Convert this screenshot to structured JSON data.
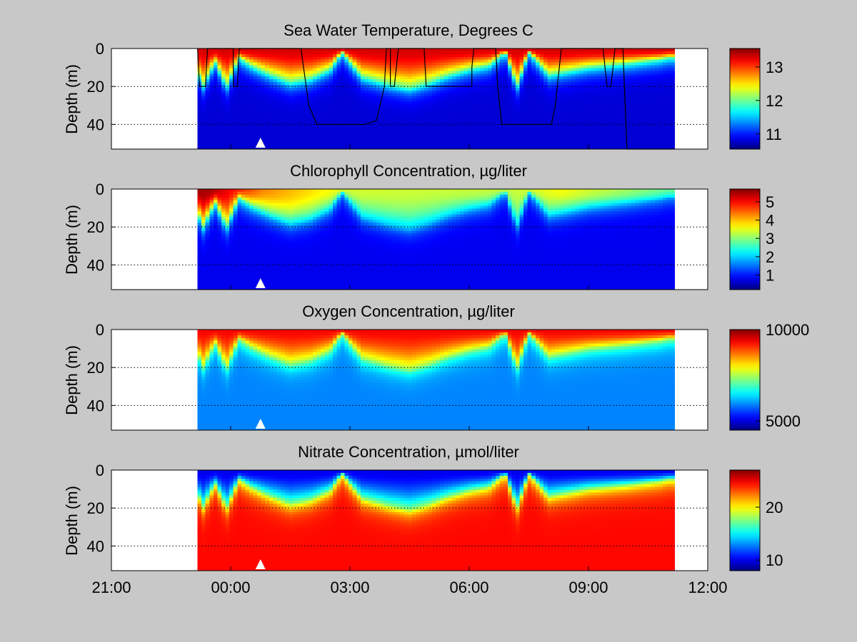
{
  "chart_data": [
    {
      "type": "heatmap",
      "title": "Sea Water Temperature, Degrees C",
      "ylabel": "Depth (m)",
      "x_ticks": [
        "21:00",
        "00:00",
        "03:00",
        "06:00",
        "09:00",
        "12:00"
      ],
      "y_ticks": [
        "0",
        "20",
        "40"
      ],
      "xlim": [
        "21:00",
        "12:00"
      ],
      "ylim": [
        0,
        53
      ],
      "y_reversed": true,
      "data_x_range": [
        "23:10",
        "11:10"
      ],
      "colorbar": {
        "ticks": [
          "11",
          "12",
          "13"
        ],
        "values": [
          11,
          12,
          13
        ],
        "range": [
          10.55,
          13.55
        ]
      },
      "surface_value": 13.3,
      "deep_value": 10.8,
      "mixed_layer_depth_m": [
        [
          0.0,
          1
        ],
        [
          0.3,
          20
        ],
        [
          0.6,
          7
        ],
        [
          0.9,
          20
        ],
        [
          1.2,
          5
        ],
        [
          1.5,
          9
        ],
        [
          2.0,
          14
        ],
        [
          2.5,
          18
        ],
        [
          3.0,
          16
        ],
        [
          3.5,
          11
        ],
        [
          3.8,
          2
        ],
        [
          4.3,
          15
        ],
        [
          5.0,
          19
        ],
        [
          5.5,
          21
        ],
        [
          6.0,
          18
        ],
        [
          6.5,
          14
        ],
        [
          7.0,
          11
        ],
        [
          7.5,
          9
        ],
        [
          7.9,
          2
        ],
        [
          8.2,
          20
        ],
        [
          8.5,
          2
        ],
        [
          9.0,
          14
        ],
        [
          9.5,
          12
        ],
        [
          10.0,
          10
        ],
        [
          10.5,
          9
        ],
        [
          11.0,
          8
        ],
        [
          11.8,
          6
        ],
        [
          12.0,
          5
        ]
      ],
      "line_profile": [
        [
          0.0,
          0
        ],
        [
          0.05,
          20
        ],
        [
          0.2,
          20
        ],
        [
          0.25,
          0
        ],
        [
          0.9,
          0
        ],
        [
          0.9,
          20
        ],
        [
          1.0,
          20
        ],
        [
          1.05,
          0
        ],
        [
          2.6,
          0
        ],
        [
          2.8,
          30
        ],
        [
          3.0,
          40
        ],
        [
          3.5,
          40
        ],
        [
          4.2,
          40
        ],
        [
          4.5,
          38
        ],
        [
          4.7,
          20
        ],
        [
          4.75,
          0
        ],
        [
          4.85,
          0
        ],
        [
          4.85,
          20
        ],
        [
          4.95,
          20
        ],
        [
          5.05,
          0
        ],
        [
          5.7,
          0
        ],
        [
          5.75,
          20
        ],
        [
          6.9,
          20
        ],
        [
          6.9,
          10
        ],
        [
          6.95,
          0
        ],
        [
          7.5,
          0
        ],
        [
          7.55,
          20
        ],
        [
          7.65,
          40
        ],
        [
          8.4,
          40
        ],
        [
          8.9,
          40
        ],
        [
          9.0,
          30
        ],
        [
          9.05,
          20
        ],
        [
          9.15,
          0
        ],
        [
          10.2,
          0
        ],
        [
          10.3,
          20
        ],
        [
          10.4,
          20
        ],
        [
          10.5,
          0
        ],
        [
          10.7,
          0
        ],
        [
          10.8,
          53
        ],
        [
          12.0,
          53
        ]
      ],
      "marker_time": "00:45"
    },
    {
      "type": "heatmap",
      "title": "Chlorophyll Concentration, µg/liter",
      "ylabel": "Depth (m)",
      "x_ticks": [
        "21:00",
        "00:00",
        "03:00",
        "06:00",
        "09:00",
        "12:00"
      ],
      "y_ticks": [
        "0",
        "20",
        "40"
      ],
      "xlim": [
        "21:00",
        "12:00"
      ],
      "ylim": [
        0,
        53
      ],
      "y_reversed": true,
      "data_x_range": [
        "23:10",
        "11:10"
      ],
      "colorbar": {
        "ticks": [
          "1",
          "2",
          "3",
          "4",
          "5"
        ],
        "values": [
          1,
          2,
          3,
          4,
          5
        ],
        "range": [
          0.2,
          5.7
        ]
      },
      "surface_value": 3.3,
      "deep_value": 0.8,
      "surface_peaks": [
        [
          0.5,
          5.5
        ],
        [
          1.0,
          5.0
        ],
        [
          1.8,
          4.3
        ],
        [
          4.0,
          3.4
        ],
        [
          8.0,
          3.3
        ],
        [
          9.3,
          3.6
        ],
        [
          12.0,
          2.8
        ]
      ],
      "mixed_layer_depth_m": [
        [
          0.0,
          1
        ],
        [
          0.3,
          20
        ],
        [
          0.6,
          7
        ],
        [
          0.9,
          20
        ],
        [
          1.2,
          5
        ],
        [
          1.5,
          9
        ],
        [
          2.0,
          14
        ],
        [
          2.5,
          18
        ],
        [
          3.0,
          16
        ],
        [
          3.5,
          11
        ],
        [
          3.8,
          2
        ],
        [
          4.3,
          15
        ],
        [
          5.0,
          19
        ],
        [
          5.5,
          21
        ],
        [
          6.0,
          18
        ],
        [
          6.5,
          14
        ],
        [
          7.0,
          11
        ],
        [
          7.5,
          9
        ],
        [
          7.9,
          2
        ],
        [
          8.2,
          20
        ],
        [
          8.5,
          2
        ],
        [
          9.0,
          14
        ],
        [
          9.5,
          12
        ],
        [
          10.0,
          10
        ],
        [
          10.5,
          9
        ],
        [
          11.0,
          8
        ],
        [
          11.8,
          6
        ],
        [
          12.0,
          5
        ]
      ],
      "marker_time": "00:45"
    },
    {
      "type": "heatmap",
      "title": "Oxygen Concentration, µg/liter",
      "ylabel": "Depth (m)",
      "x_ticks": [
        "21:00",
        "00:00",
        "03:00",
        "06:00",
        "09:00",
        "12:00"
      ],
      "y_ticks": [
        "0",
        "20",
        "40"
      ],
      "xlim": [
        "21:00",
        "12:00"
      ],
      "ylim": [
        0,
        53
      ],
      "y_reversed": true,
      "data_x_range": [
        "23:10",
        "11:10"
      ],
      "colorbar": {
        "ticks": [
          "5000",
          "10000"
        ],
        "values": [
          5000,
          10000
        ],
        "range": [
          4500,
          10000
        ]
      },
      "surface_value": 9300,
      "deep_value": 5900,
      "mixed_layer_depth_m": [
        [
          0.0,
          1
        ],
        [
          0.3,
          20
        ],
        [
          0.6,
          7
        ],
        [
          0.9,
          20
        ],
        [
          1.2,
          5
        ],
        [
          1.5,
          9
        ],
        [
          2.0,
          14
        ],
        [
          2.5,
          18
        ],
        [
          3.0,
          16
        ],
        [
          3.5,
          11
        ],
        [
          3.8,
          2
        ],
        [
          4.3,
          15
        ],
        [
          5.0,
          19
        ],
        [
          5.5,
          21
        ],
        [
          6.0,
          18
        ],
        [
          6.5,
          14
        ],
        [
          7.0,
          11
        ],
        [
          7.5,
          9
        ],
        [
          7.9,
          2
        ],
        [
          8.2,
          20
        ],
        [
          8.5,
          2
        ],
        [
          9.0,
          14
        ],
        [
          9.5,
          12
        ],
        [
          10.0,
          10
        ],
        [
          10.5,
          9
        ],
        [
          11.0,
          8
        ],
        [
          11.8,
          6
        ],
        [
          12.0,
          5
        ]
      ],
      "marker_time": "00:45"
    },
    {
      "type": "heatmap",
      "title": "Nitrate Concentration, µmol/liter",
      "ylabel": "Depth (m)",
      "x_ticks": [
        "21:00",
        "00:00",
        "03:00",
        "06:00",
        "09:00",
        "12:00"
      ],
      "y_ticks": [
        "0",
        "20",
        "40"
      ],
      "xlim": [
        "21:00",
        "12:00"
      ],
      "ylim": [
        0,
        53
      ],
      "y_reversed": true,
      "data_x_range": [
        "23:10",
        "11:10"
      ],
      "colorbar": {
        "ticks": [
          "10",
          "20"
        ],
        "values": [
          10,
          20
        ],
        "range": [
          8,
          27
        ]
      },
      "surface_value": 10,
      "deep_value": 24.5,
      "mixed_layer_depth_m": [
        [
          0.0,
          1
        ],
        [
          0.3,
          20
        ],
        [
          0.6,
          7
        ],
        [
          0.9,
          20
        ],
        [
          1.2,
          5
        ],
        [
          1.5,
          9
        ],
        [
          2.0,
          14
        ],
        [
          2.5,
          18
        ],
        [
          3.0,
          16
        ],
        [
          3.5,
          11
        ],
        [
          3.8,
          2
        ],
        [
          4.3,
          15
        ],
        [
          5.0,
          19
        ],
        [
          5.5,
          21
        ],
        [
          6.0,
          18
        ],
        [
          6.5,
          14
        ],
        [
          7.0,
          11
        ],
        [
          7.5,
          9
        ],
        [
          7.9,
          2
        ],
        [
          8.2,
          20
        ],
        [
          8.5,
          2
        ],
        [
          9.0,
          14
        ],
        [
          9.5,
          12
        ],
        [
          10.0,
          10
        ],
        [
          10.5,
          9
        ],
        [
          11.0,
          8
        ],
        [
          11.8,
          6
        ],
        [
          12.0,
          5
        ]
      ],
      "marker_time": "00:45"
    }
  ]
}
